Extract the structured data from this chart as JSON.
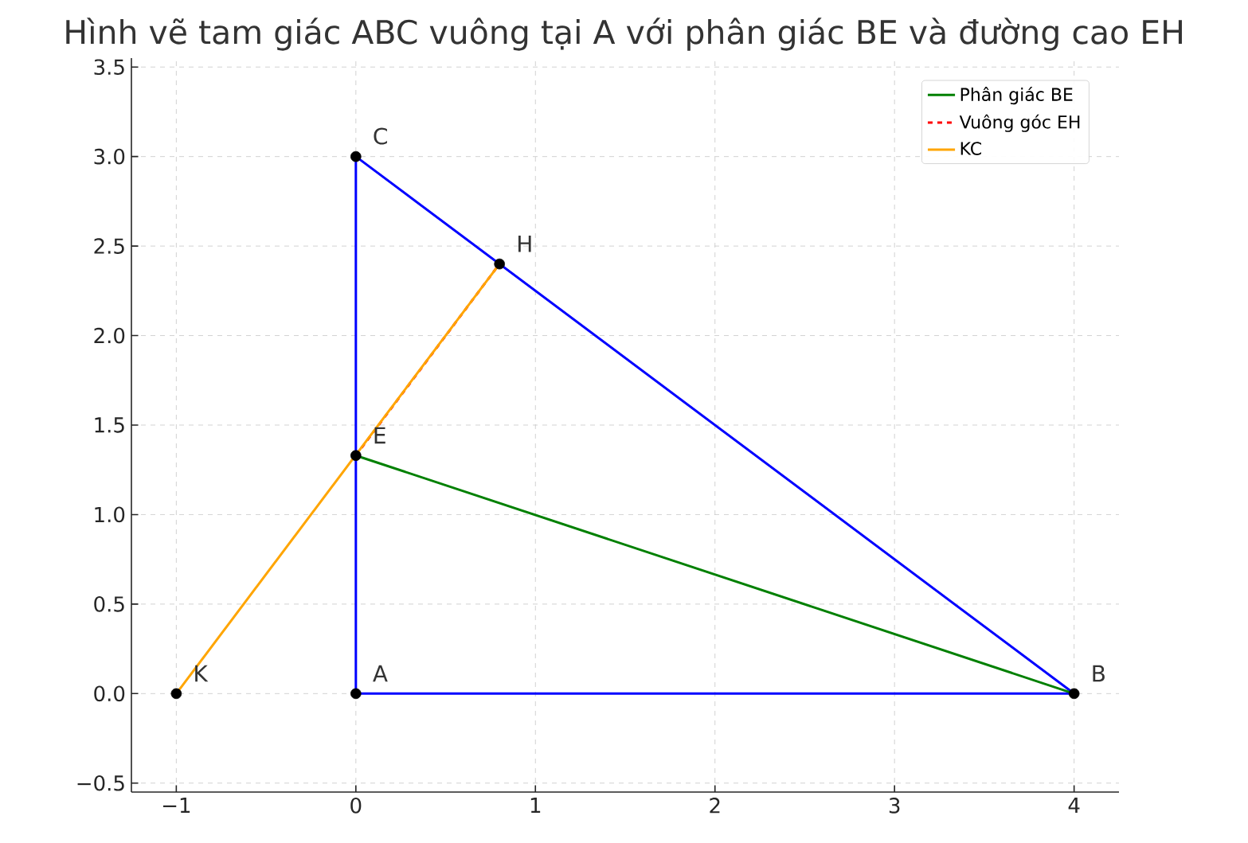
{
  "chart_data": {
    "type": "line",
    "title": "Hình vẽ tam giác ABC vuông tại A với phân giác BE và đường cao EH",
    "series": [
      {
        "color": "#0000ff",
        "x": [
          0,
          4
        ],
        "values": [
          0,
          0
        ],
        "line_style": "solid"
      },
      {
        "color": "#0000ff",
        "x": [
          0,
          4
        ],
        "values": [
          3,
          0
        ],
        "line_style": "solid"
      },
      {
        "color": "#0000ff",
        "x": [
          0,
          0
        ],
        "values": [
          0,
          3
        ],
        "line_style": "solid"
      },
      {
        "name": "Phân giác BE",
        "color": "#008000",
        "x": [
          0,
          4
        ],
        "values": [
          1.33,
          0
        ],
        "line_style": "solid"
      },
      {
        "name": "Vuông góc EH",
        "color": "#ff0000",
        "x": [
          0,
          0.8
        ],
        "values": [
          1.33,
          2.4
        ],
        "line_style": "dashed"
      },
      {
        "name": "KC",
        "color": "#ffa500",
        "x": [
          -1,
          0.8
        ],
        "values": [
          0,
          2.4
        ],
        "line_style": "solid"
      },
      {
        "type": "scatter",
        "color": "#000000",
        "marker": "circle",
        "x": [
          0,
          4,
          0,
          0,
          0.8,
          -1
        ],
        "values": [
          0,
          0,
          3,
          1.33,
          2.4,
          0
        ]
      }
    ],
    "annotations": [
      {
        "text": "A",
        "x": 0,
        "y": 0
      },
      {
        "text": "B",
        "x": 4,
        "y": 0
      },
      {
        "text": "C",
        "x": 0,
        "y": 3
      },
      {
        "text": "E",
        "x": 0,
        "y": 1.33
      },
      {
        "text": "H",
        "x": 0.8,
        "y": 2.4
      },
      {
        "text": "K",
        "x": -1,
        "y": 0
      }
    ],
    "xlim": [
      -1.25,
      4.25
    ],
    "ylim": [
      -0.55,
      3.55
    ],
    "xticks": [
      {
        "value": -1,
        "label": "−1"
      },
      0,
      1,
      2,
      3,
      4
    ],
    "yticks": [
      {
        "value": -0.5,
        "label": "−0.5"
      },
      {
        "value": 0,
        "label": "0.0"
      },
      0.5,
      {
        "value": 1,
        "label": "1.0"
      },
      1.5,
      {
        "value": 2,
        "label": "2.0"
      },
      2.5,
      {
        "value": 3,
        "label": "3.0"
      },
      3.5
    ],
    "grid": true,
    "legend": "top right"
  }
}
